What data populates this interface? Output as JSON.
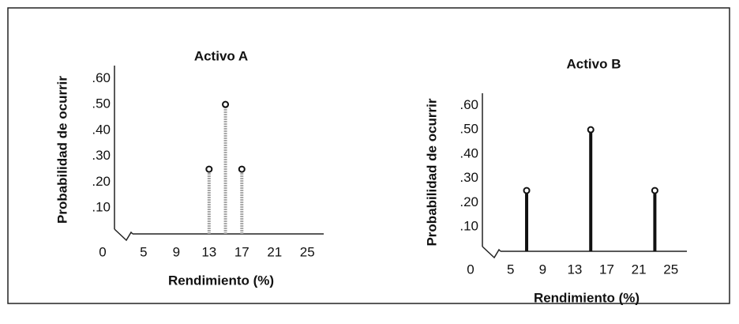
{
  "chart_data": [
    {
      "type": "stem",
      "title": "Activo A",
      "xlabel": "Rendimiento (%)",
      "ylabel": "Probabilidad de ocurrir",
      "x": [
        13,
        15,
        17
      ],
      "values": [
        0.25,
        0.5,
        0.25
      ],
      "color": "#a8a8a8",
      "xlim": [
        0,
        27
      ],
      "xticks": [
        0,
        5,
        9,
        13,
        17,
        21,
        25
      ],
      "ylim": [
        0,
        0.65
      ],
      "yticks": [
        {
          "value": 0.1,
          "label": ".10"
        },
        {
          "value": 0.2,
          "label": ".20"
        },
        {
          "value": 0.3,
          "label": ".30"
        },
        {
          "value": 0.4,
          "label": ".40"
        },
        {
          "value": 0.5,
          "label": ".50"
        },
        {
          "value": 0.6,
          "label": ".60"
        }
      ]
    },
    {
      "type": "stem",
      "title": "Activo B",
      "xlabel": "Rendimiento (%)",
      "ylabel": "Probabilidad de ocurrir",
      "x": [
        7,
        15,
        23
      ],
      "values": [
        0.25,
        0.5,
        0.25
      ],
      "color": "#111111",
      "xlim": [
        0,
        27
      ],
      "xticks": [
        0,
        5,
        9,
        13,
        17,
        21,
        25
      ],
      "ylim": [
        0,
        0.65
      ],
      "yticks": [
        {
          "value": 0.1,
          "label": ".10"
        },
        {
          "value": 0.2,
          "label": ".20"
        },
        {
          "value": 0.3,
          "label": ".30"
        },
        {
          "value": 0.4,
          "label": ".40"
        },
        {
          "value": 0.5,
          "label": ".50"
        },
        {
          "value": 0.6,
          "label": ".60"
        }
      ]
    }
  ]
}
